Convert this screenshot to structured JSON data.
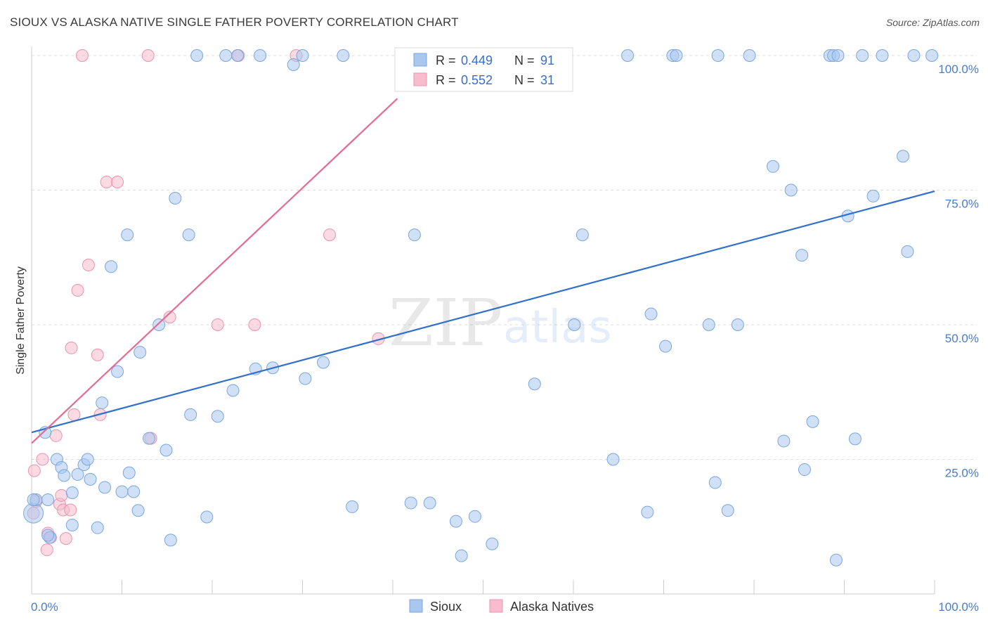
{
  "header": {
    "title": "SIOUX VS ALASKA NATIVE SINGLE FATHER POVERTY CORRELATION CHART",
    "source": "Source: ZipAtlas.com"
  },
  "watermark": {
    "zip": "ZIP",
    "atlas": "atlas"
  },
  "legend": {
    "r_label": "R =",
    "n_label": "N =",
    "rows": [
      {
        "r": "0.449",
        "n": "91"
      },
      {
        "r": "0.552",
        "n": "31"
      }
    ]
  },
  "colors": {
    "sioux_fill": "#a9c8f0",
    "sioux_stroke": "#7aa6de",
    "sioux_line": "#2f6fce",
    "alaska_fill": "#f7bccd",
    "alaska_stroke": "#ec93ad",
    "alaska_line": "#e46b93",
    "grid": "#dddddd",
    "tick_text": "#4a7cc9"
  },
  "chart_data": {
    "type": "scatter",
    "title": "SIOUX VS ALASKA NATIVE SINGLE FATHER POVERTY CORRELATION CHART",
    "xlabel": "",
    "ylabel": "Single Father Poverty",
    "xlim": [
      0,
      100
    ],
    "ylim": [
      0,
      100
    ],
    "x_tick_labels": [
      "0.0%",
      "100.0%"
    ],
    "y_tick_labels": [
      "25.0%",
      "50.0%",
      "75.0%",
      "100.0%"
    ],
    "y_ticks": [
      25,
      50,
      75,
      100
    ],
    "grid": true,
    "legend_position": "bottom-center",
    "series": [
      {
        "name": "Sioux",
        "r": 0.449,
        "n": 91,
        "trend": {
          "x": [
            0,
            100
          ],
          "y": [
            30.0,
            74.8
          ]
        },
        "points": [
          [
            0.2,
            15.0
          ],
          [
            0.5,
            17.5
          ],
          [
            1.5,
            30.0
          ],
          [
            1.8,
            17.5
          ],
          [
            2.0,
            10.5
          ],
          [
            2.8,
            25.0
          ],
          [
            3.3,
            23.5
          ],
          [
            3.6,
            22.0
          ],
          [
            4.5,
            18.8
          ],
          [
            4.5,
            12.8
          ],
          [
            5.1,
            22.2
          ],
          [
            5.8,
            24.0
          ],
          [
            6.2,
            25.0
          ],
          [
            6.5,
            21.3
          ],
          [
            7.3,
            12.3
          ],
          [
            7.8,
            35.5
          ],
          [
            8.1,
            19.8
          ],
          [
            8.8,
            60.8
          ],
          [
            9.5,
            41.3
          ],
          [
            10.0,
            19.0
          ],
          [
            10.6,
            66.7
          ],
          [
            10.8,
            22.5
          ],
          [
            11.3,
            19.0
          ],
          [
            11.8,
            15.5
          ],
          [
            12.0,
            44.9
          ],
          [
            13.0,
            28.9
          ],
          [
            14.1,
            50.0
          ],
          [
            14.9,
            26.7
          ],
          [
            15.4,
            10.0
          ],
          [
            15.9,
            73.5
          ],
          [
            17.4,
            66.7
          ],
          [
            17.6,
            33.3
          ],
          [
            18.3,
            100.0
          ],
          [
            19.4,
            14.3
          ],
          [
            20.6,
            33.0
          ],
          [
            21.5,
            100.0
          ],
          [
            22.3,
            37.8
          ],
          [
            22.8,
            100.0
          ],
          [
            24.8,
            41.8
          ],
          [
            25.3,
            100.0
          ],
          [
            26.7,
            42.0
          ],
          [
            29.0,
            98.3
          ],
          [
            30.3,
            40.0
          ],
          [
            32.3,
            43.0
          ],
          [
            34.5,
            100.0
          ],
          [
            35.5,
            16.2
          ],
          [
            42.0,
            16.9
          ],
          [
            42.4,
            66.7
          ],
          [
            44.1,
            16.9
          ],
          [
            47.0,
            13.5
          ],
          [
            47.6,
            7.1
          ],
          [
            49.1,
            14.4
          ],
          [
            51.0,
            9.3
          ],
          [
            55.7,
            39.0
          ],
          [
            61.0,
            66.7
          ],
          [
            60.1,
            50.0
          ],
          [
            64.4,
            25.0
          ],
          [
            66.0,
            100.0
          ],
          [
            68.2,
            15.2
          ],
          [
            68.6,
            52.0
          ],
          [
            70.2,
            46.0
          ],
          [
            71.0,
            100.0
          ],
          [
            71.4,
            100.0
          ],
          [
            75.7,
            20.7
          ],
          [
            75.0,
            50.0
          ],
          [
            76.0,
            100.0
          ],
          [
            77.1,
            15.5
          ],
          [
            78.2,
            50.0
          ],
          [
            79.5,
            100.0
          ],
          [
            82.1,
            79.4
          ],
          [
            83.3,
            28.4
          ],
          [
            84.1,
            75.0
          ],
          [
            85.3,
            62.9
          ],
          [
            85.6,
            23.1
          ],
          [
            86.5,
            32.0
          ],
          [
            88.4,
            100.0
          ],
          [
            88.8,
            100.0
          ],
          [
            89.3,
            100.0
          ],
          [
            89.1,
            6.3
          ],
          [
            90.4,
            70.2
          ],
          [
            91.2,
            28.8
          ],
          [
            92.0,
            100.0
          ],
          [
            93.2,
            73.9
          ],
          [
            94.2,
            100.0
          ],
          [
            96.5,
            81.3
          ],
          [
            97.0,
            63.6
          ],
          [
            97.7,
            100.0
          ],
          [
            99.7,
            100.0
          ],
          [
            30.0,
            100.0
          ],
          [
            0.2,
            17.5
          ],
          [
            1.8,
            10.9
          ]
        ]
      },
      {
        "name": "Alaska Natives",
        "r": 0.552,
        "n": 31,
        "trend": {
          "x": [
            0,
            40.5
          ],
          "y": [
            28.0,
            92.0
          ]
        },
        "points": [
          [
            0.3,
            22.9
          ],
          [
            0.5,
            17.2
          ],
          [
            1.2,
            25.0
          ],
          [
            1.7,
            8.2
          ],
          [
            1.8,
            11.3
          ],
          [
            2.1,
            10.5
          ],
          [
            2.7,
            29.4
          ],
          [
            3.1,
            16.7
          ],
          [
            3.3,
            18.3
          ],
          [
            3.5,
            15.6
          ],
          [
            3.8,
            10.3
          ],
          [
            4.3,
            15.6
          ],
          [
            4.4,
            45.7
          ],
          [
            4.7,
            33.3
          ],
          [
            5.1,
            56.4
          ],
          [
            5.6,
            100.0
          ],
          [
            6.3,
            61.1
          ],
          [
            7.3,
            44.4
          ],
          [
            7.6,
            33.3
          ],
          [
            8.3,
            76.5
          ],
          [
            9.5,
            76.5
          ],
          [
            12.9,
            100.0
          ],
          [
            13.2,
            28.9
          ],
          [
            15.3,
            51.4
          ],
          [
            20.6,
            50.0
          ],
          [
            22.9,
            100.0
          ],
          [
            24.7,
            50.0
          ],
          [
            29.3,
            100.0
          ],
          [
            33.0,
            66.7
          ],
          [
            38.4,
            47.4
          ],
          [
            0.2,
            15.0
          ]
        ]
      }
    ]
  },
  "bottom_legend": [
    "Sioux",
    "Alaska Natives"
  ]
}
